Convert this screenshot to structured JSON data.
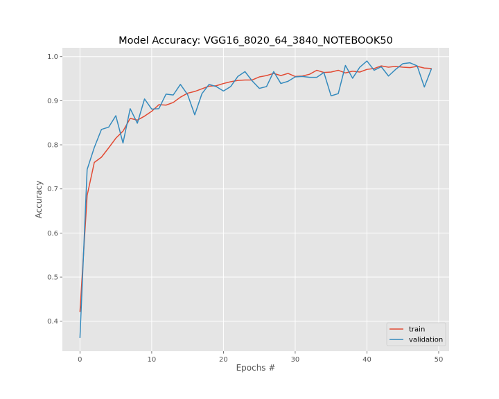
{
  "chart_data": {
    "type": "line",
    "title": "Model Accuracy: VGG16_8020_64_3840_NOTEBOOK50",
    "xlabel": "Epochs #",
    "ylabel": "Accuracy",
    "xlim": [
      -2.45,
      51.45
    ],
    "ylim": [
      0.332,
      1.02
    ],
    "xticks": [
      0,
      10,
      20,
      30,
      40,
      50
    ],
    "yticks": [
      0.4,
      0.5,
      0.6,
      0.7,
      0.8,
      0.9,
      1.0
    ],
    "xtick_labels": [
      "0",
      "10",
      "20",
      "30",
      "40",
      "50"
    ],
    "ytick_labels": [
      "0.4",
      "0.5",
      "0.6",
      "0.7",
      "0.8",
      "0.9",
      "1.0"
    ],
    "grid": true,
    "legend_position": "lower-right",
    "x": [
      0,
      1,
      2,
      3,
      4,
      5,
      6,
      7,
      8,
      9,
      10,
      11,
      12,
      13,
      14,
      15,
      16,
      17,
      18,
      19,
      20,
      21,
      22,
      23,
      24,
      25,
      26,
      27,
      28,
      29,
      30,
      31,
      32,
      33,
      34,
      35,
      36,
      37,
      38,
      39,
      40,
      41,
      42,
      43,
      44,
      45,
      46,
      47,
      48,
      49
    ],
    "series": [
      {
        "name": "train",
        "color": "#e24a33",
        "values": [
          0.421,
          0.685,
          0.76,
          0.772,
          0.793,
          0.815,
          0.831,
          0.86,
          0.856,
          0.865,
          0.876,
          0.891,
          0.89,
          0.896,
          0.908,
          0.917,
          0.921,
          0.927,
          0.933,
          0.934,
          0.939,
          0.943,
          0.946,
          0.947,
          0.947,
          0.954,
          0.957,
          0.962,
          0.957,
          0.962,
          0.955,
          0.956,
          0.96,
          0.969,
          0.964,
          0.965,
          0.969,
          0.963,
          0.967,
          0.965,
          0.971,
          0.973,
          0.979,
          0.976,
          0.978,
          0.976,
          0.975,
          0.978,
          0.974,
          0.973
        ]
      },
      {
        "name": "validation",
        "color": "#348abd",
        "values": [
          0.362,
          0.744,
          0.794,
          0.835,
          0.84,
          0.866,
          0.804,
          0.882,
          0.849,
          0.904,
          0.881,
          0.882,
          0.915,
          0.913,
          0.937,
          0.914,
          0.868,
          0.916,
          0.937,
          0.932,
          0.922,
          0.932,
          0.955,
          0.966,
          0.945,
          0.928,
          0.932,
          0.966,
          0.939,
          0.944,
          0.954,
          0.955,
          0.953,
          0.953,
          0.964,
          0.911,
          0.916,
          0.98,
          0.951,
          0.976,
          0.99,
          0.969,
          0.977,
          0.956,
          0.971,
          0.984,
          0.986,
          0.979,
          0.931,
          0.973
        ]
      }
    ]
  }
}
